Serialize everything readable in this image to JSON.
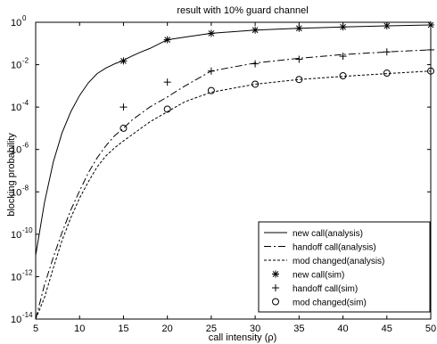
{
  "chart_data": {
    "type": "line",
    "title": "result with 10% guard channel",
    "xlabel": "call intensity (ρ)",
    "ylabel": "blocking probability",
    "xlim": [
      5,
      50
    ],
    "ylim_log10": [
      -14,
      0
    ],
    "yscale": "log",
    "grid": false,
    "legend_position": "bottom-right",
    "x_ticks": [
      "5",
      "10",
      "15",
      "20",
      "25",
      "30",
      "35",
      "40",
      "45",
      "50"
    ],
    "y_ticks": [
      {
        "base": "10",
        "exp": "0"
      },
      {
        "base": "10",
        "exp": "-2"
      },
      {
        "base": "10",
        "exp": "-4"
      },
      {
        "base": "10",
        "exp": "-6"
      },
      {
        "base": "10",
        "exp": "-8"
      },
      {
        "base": "10",
        "exp": "-10"
      },
      {
        "base": "10",
        "exp": "-12"
      },
      {
        "base": "10",
        "exp": "-14"
      }
    ],
    "series": [
      {
        "name": "new call(analysis)",
        "style": "solid",
        "x": [
          5,
          6,
          7,
          8,
          9,
          10,
          11,
          12,
          13,
          14,
          15,
          16,
          17,
          18,
          20,
          22,
          25,
          30,
          35,
          40,
          45,
          50
        ],
        "y": [
          1e-11,
          3e-09,
          2.5e-07,
          6e-06,
          6e-05,
          0.00035,
          0.0014,
          0.0038,
          0.007,
          0.011,
          0.016,
          0.026,
          0.04,
          0.058,
          0.15,
          0.2,
          0.3,
          0.43,
          0.52,
          0.6,
          0.68,
          0.75
        ]
      },
      {
        "name": "handoff call(analysis)",
        "style": "dashdot",
        "x": [
          5,
          6,
          7,
          8,
          9,
          10,
          11,
          12,
          13,
          14,
          15,
          16,
          17,
          18,
          20,
          22,
          25,
          30,
          35,
          40,
          45,
          50
        ],
        "y": [
          1e-14,
          4e-13,
          8e-12,
          1.2e-10,
          1.4e-09,
          1.1e-08,
          8e-08,
          4e-07,
          1.5e-06,
          4.5e-06,
          1e-05,
          2.5e-05,
          5e-05,
          0.0001,
          0.0003,
          0.001,
          0.005,
          0.012,
          0.02,
          0.03,
          0.04,
          0.05
        ]
      },
      {
        "name": "mod changed(analysis)",
        "style": "dashed",
        "x": [
          5,
          6,
          7,
          8,
          9,
          10,
          11,
          12,
          13,
          14,
          15,
          16,
          17,
          18,
          20,
          22,
          25,
          30,
          35,
          40,
          45,
          50
        ],
        "y": [
          3e-15,
          1e-13,
          2.5e-12,
          5e-11,
          6e-10,
          5e-09,
          3e-08,
          1.5e-07,
          5e-07,
          1.2e-06,
          2.5e-06,
          5e-06,
          1e-05,
          2e-05,
          6e-05,
          0.00018,
          0.0005,
          0.0012,
          0.002,
          0.0028,
          0.0038,
          0.005
        ]
      },
      {
        "name": "new call(sim)",
        "marker": "star",
        "x": [
          15,
          20,
          25,
          30,
          35,
          40,
          45,
          50
        ],
        "y": [
          0.015,
          0.15,
          0.3,
          0.43,
          0.52,
          0.6,
          0.68,
          0.75
        ]
      },
      {
        "name": "handoff call(sim)",
        "marker": "plus",
        "x": [
          15,
          20,
          25,
          30,
          35,
          40,
          45,
          50
        ],
        "y": [
          0.0001,
          0.0015,
          0.005,
          0.011,
          0.018,
          0.025,
          0.04,
          0.05
        ]
      },
      {
        "name": "mod changed(sim)",
        "marker": "circle",
        "x": [
          15,
          20,
          25,
          30,
          35,
          40,
          45,
          50
        ],
        "y": [
          1e-05,
          8e-05,
          0.0006,
          0.0012,
          0.002,
          0.003,
          0.004,
          0.005
        ]
      }
    ]
  }
}
